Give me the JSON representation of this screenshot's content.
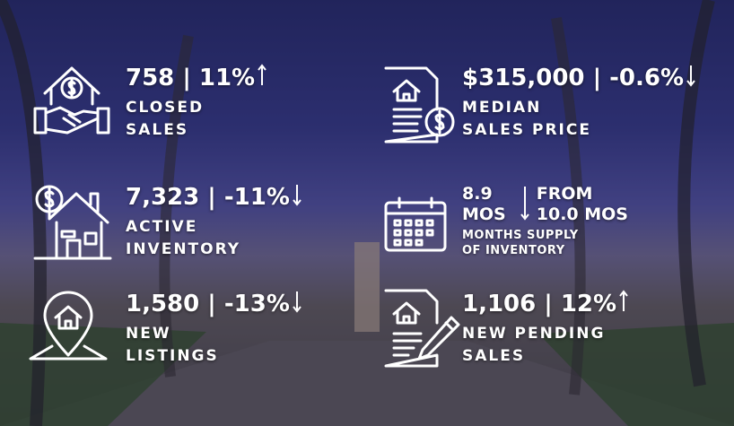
{
  "stats": [
    {
      "headline": "758 | 11%",
      "trend": "up",
      "label": [
        "CLOSED",
        "SALES"
      ]
    },
    {
      "headline": "$315,000 | -0.6%",
      "trend": "down",
      "label": [
        "MEDIAN",
        "SALES PRICE"
      ]
    },
    {
      "headline": "7,323 | -11%",
      "trend": "down",
      "label": [
        "ACTIVE",
        "INVENTORY"
      ]
    },
    {
      "current": "8.9",
      "current_unit": "MOS",
      "previous_prefix": "FROM",
      "previous": "10.0 MOS",
      "trend": "down",
      "label": [
        "MONTHS SUPPLY",
        "OF INVENTORY"
      ]
    },
    {
      "headline": "1,580 | -13%",
      "trend": "down",
      "label": [
        "NEW",
        "LISTINGS"
      ]
    },
    {
      "headline": "1,106 | 12%",
      "trend": "up",
      "label": [
        "NEW PENDING",
        "SALES"
      ]
    }
  ]
}
